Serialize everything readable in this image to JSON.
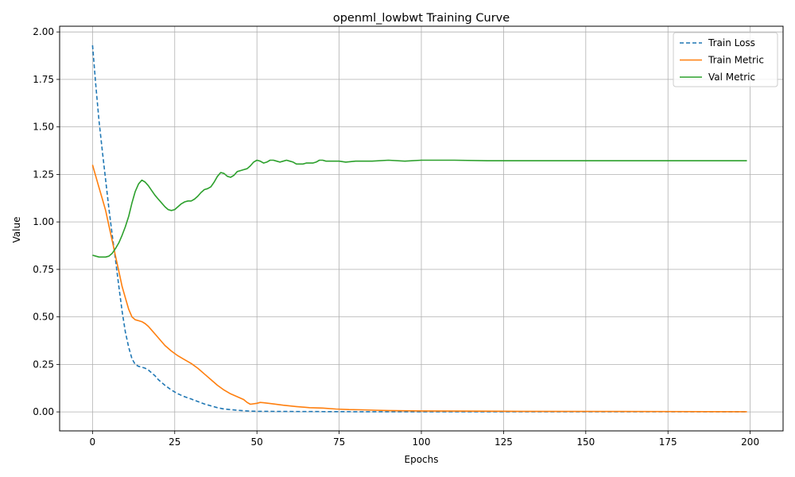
{
  "chart_data": {
    "type": "line",
    "title": "openml_lowbwt Training Curve",
    "xlabel": "Epochs",
    "ylabel": "Value",
    "xlim": [
      -10,
      210
    ],
    "ylim": [
      -0.1,
      2.03
    ],
    "xticks": [
      0,
      25,
      50,
      75,
      100,
      125,
      150,
      175,
      200
    ],
    "yticks": [
      0.0,
      0.25,
      0.5,
      0.75,
      1.0,
      1.25,
      1.5,
      1.75,
      2.0
    ],
    "xtick_labels": [
      "0",
      "25",
      "50",
      "75",
      "100",
      "125",
      "150",
      "175",
      "200"
    ],
    "ytick_labels": [
      "0.00",
      "0.25",
      "0.50",
      "0.75",
      "1.00",
      "1.25",
      "1.50",
      "1.75",
      "2.00"
    ],
    "grid": true,
    "legend_position": "top-right",
    "series": [
      {
        "name": "Train Loss",
        "color": "#1f77b4",
        "style": "dashed",
        "x": [
          0,
          1,
          2,
          3,
          4,
          5,
          6,
          7,
          8,
          9,
          10,
          11,
          12,
          13,
          14,
          15,
          16,
          17,
          18,
          19,
          20,
          22,
          24,
          26,
          28,
          30,
          32,
          34,
          36,
          38,
          40,
          42,
          44,
          46,
          48,
          50,
          60,
          80,
          100,
          150,
          199
        ],
        "values": [
          1.93,
          1.72,
          1.53,
          1.37,
          1.22,
          1.07,
          0.93,
          0.8,
          0.66,
          0.53,
          0.42,
          0.34,
          0.28,
          0.25,
          0.24,
          0.235,
          0.23,
          0.22,
          0.205,
          0.19,
          0.17,
          0.14,
          0.115,
          0.095,
          0.08,
          0.068,
          0.055,
          0.042,
          0.032,
          0.022,
          0.015,
          0.012,
          0.009,
          0.006,
          0.004,
          0.003,
          0.002,
          0.001,
          0.001,
          0.001,
          0.001
        ]
      },
      {
        "name": "Train Metric",
        "color": "#ff7f0e",
        "style": "solid",
        "x": [
          0,
          1,
          2,
          3,
          4,
          5,
          6,
          7,
          8,
          9,
          10,
          11,
          12,
          13,
          14,
          15,
          16,
          17,
          18,
          19,
          20,
          22,
          24,
          26,
          28,
          30,
          32,
          34,
          36,
          38,
          40,
          42,
          44,
          46,
          47,
          48,
          50,
          51,
          52,
          55,
          58,
          62,
          66,
          70,
          74,
          78,
          82,
          86,
          90,
          100,
          110,
          130,
          160,
          199
        ],
        "values": [
          1.3,
          1.24,
          1.18,
          1.12,
          1.06,
          0.98,
          0.9,
          0.82,
          0.74,
          0.66,
          0.6,
          0.54,
          0.5,
          0.485,
          0.48,
          0.475,
          0.465,
          0.45,
          0.43,
          0.41,
          0.39,
          0.35,
          0.32,
          0.295,
          0.275,
          0.255,
          0.23,
          0.2,
          0.17,
          0.14,
          0.115,
          0.095,
          0.08,
          0.065,
          0.05,
          0.04,
          0.045,
          0.05,
          0.048,
          0.042,
          0.035,
          0.028,
          0.022,
          0.02,
          0.015,
          0.012,
          0.011,
          0.009,
          0.007,
          0.005,
          0.004,
          0.003,
          0.002,
          0.001
        ]
      },
      {
        "name": "Val Metric",
        "color": "#2ca02c",
        "style": "solid",
        "x": [
          0,
          1,
          2,
          3,
          4,
          5,
          6,
          7,
          8,
          9,
          10,
          11,
          12,
          13,
          14,
          15,
          16,
          17,
          18,
          19,
          20,
          21,
          22,
          23,
          24,
          25,
          26,
          27,
          28,
          29,
          30,
          31,
          32,
          33,
          34,
          35,
          36,
          37,
          38,
          39,
          40,
          41,
          42,
          43,
          44,
          45,
          46,
          47,
          48,
          49,
          50,
          51,
          52,
          53,
          54,
          55,
          56,
          57,
          58,
          59,
          60,
          61,
          62,
          63,
          64,
          65,
          66,
          67,
          68,
          69,
          70,
          71,
          72,
          73,
          75,
          77,
          80,
          85,
          90,
          95,
          100,
          110,
          120,
          140,
          170,
          199
        ],
        "values": [
          0.825,
          0.82,
          0.815,
          0.815,
          0.815,
          0.82,
          0.835,
          0.86,
          0.89,
          0.93,
          0.975,
          1.03,
          1.1,
          1.16,
          1.2,
          1.22,
          1.21,
          1.19,
          1.165,
          1.14,
          1.12,
          1.1,
          1.08,
          1.065,
          1.06,
          1.065,
          1.08,
          1.095,
          1.105,
          1.11,
          1.11,
          1.12,
          1.135,
          1.155,
          1.17,
          1.175,
          1.185,
          1.21,
          1.24,
          1.26,
          1.255,
          1.24,
          1.235,
          1.245,
          1.265,
          1.27,
          1.275,
          1.28,
          1.295,
          1.315,
          1.325,
          1.32,
          1.31,
          1.315,
          1.325,
          1.325,
          1.32,
          1.315,
          1.32,
          1.325,
          1.32,
          1.315,
          1.305,
          1.305,
          1.305,
          1.31,
          1.31,
          1.31,
          1.315,
          1.325,
          1.325,
          1.32,
          1.32,
          1.32,
          1.32,
          1.315,
          1.32,
          1.32,
          1.325,
          1.32,
          1.325,
          1.325,
          1.322,
          1.322,
          1.322,
          1.322
        ]
      }
    ]
  }
}
